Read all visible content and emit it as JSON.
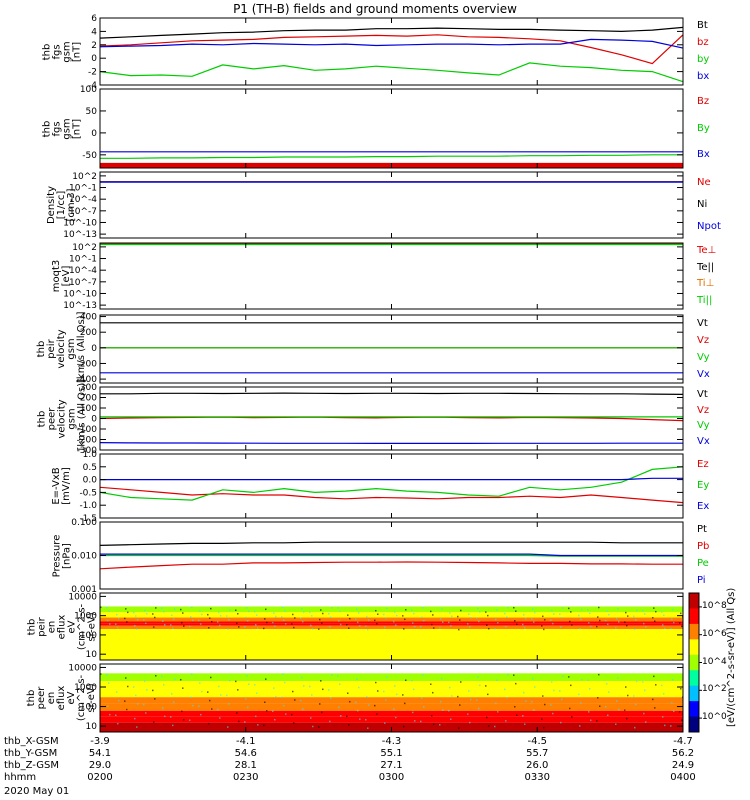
{
  "title": "P1 (TH-B) fields and ground moments overview",
  "chart_data": [
    {
      "type": "line",
      "ylabel": [
        "thb",
        "fgs",
        "gsm",
        "[nT]"
      ],
      "ylim": [
        -4,
        6
      ],
      "yticks": [
        6,
        4,
        2,
        0,
        -2,
        -4
      ],
      "series": [
        {
          "name": "Bt",
          "color": "#000000",
          "values": [
            3.0,
            3.2,
            3.4,
            3.6,
            3.8,
            3.9,
            4.1,
            4.2,
            4.2,
            4.4,
            4.4,
            4.5,
            4.4,
            4.3,
            4.3,
            4.2,
            4.1,
            4.0,
            4.2,
            4.6
          ]
        },
        {
          "name": "bz",
          "color": "#e00000",
          "values": [
            1.8,
            2.0,
            2.3,
            2.6,
            2.7,
            2.8,
            3.1,
            3.2,
            3.3,
            3.4,
            3.3,
            3.5,
            3.2,
            3.1,
            2.9,
            2.6,
            1.6,
            0.5,
            -0.8,
            3.5
          ]
        },
        {
          "name": "by",
          "color": "#00cc00",
          "values": [
            -2.0,
            -2.6,
            -2.5,
            -2.7,
            -1.0,
            -1.6,
            -1.1,
            -1.8,
            -1.6,
            -1.2,
            -1.5,
            -1.8,
            -2.2,
            -2.5,
            -0.7,
            -1.2,
            -1.4,
            -1.8,
            -2.0,
            -3.5
          ]
        },
        {
          "name": "bx",
          "color": "#0000dd",
          "values": [
            1.7,
            1.8,
            1.9,
            2.1,
            2.0,
            2.2,
            2.1,
            2.0,
            2.1,
            1.9,
            2.0,
            2.1,
            2.1,
            2.0,
            2.1,
            2.1,
            2.8,
            2.7,
            2.5,
            1.5
          ]
        }
      ]
    },
    {
      "type": "line",
      "ylabel": [
        "thb",
        "fgs",
        "gsm",
        "[nT]"
      ],
      "ylim": [
        -80,
        100
      ],
      "yticks": [
        100,
        50,
        0,
        -50
      ],
      "series": [
        {
          "name": "Bz",
          "color": "#e00000",
          "values": [
            -74,
            -74,
            -74,
            -74,
            -74,
            -74,
            -74,
            -74,
            -74,
            -74,
            -74,
            -74,
            -74,
            -74,
            -74,
            -74,
            -74,
            -74,
            -74,
            -74
          ]
        },
        {
          "name": "By",
          "color": "#00cc00",
          "values": [
            -58,
            -58,
            -57,
            -57,
            -56,
            -56,
            -55,
            -55,
            -55,
            -54,
            -54,
            -53,
            -53,
            -53,
            -52,
            -52,
            -51,
            -51,
            -50,
            -50
          ]
        },
        {
          "name": "Bx",
          "color": "#0000dd",
          "values": [
            -43,
            -43,
            -43,
            -43,
            -43,
            -43,
            -43,
            -43,
            -43,
            -43,
            -43,
            -43,
            -43,
            -43,
            -43,
            -43,
            -43,
            -43,
            -43,
            -43
          ]
        }
      ]
    },
    {
      "type": "line",
      "ylabel": [
        "Density",
        "[1/cc]",
        "[cm-3]"
      ],
      "yscale": "log",
      "ylim_exp": [
        -14,
        3
      ],
      "ytick_exps": [
        2,
        -1,
        -4,
        -7,
        -10,
        -13
      ],
      "series": [
        {
          "name": "Ne",
          "color": "#e00000",
          "values": [
            3,
            3,
            3,
            3,
            3,
            3,
            3,
            3,
            3,
            3,
            3,
            3,
            3,
            3,
            3,
            3,
            3,
            3,
            3,
            3
          ]
        },
        {
          "name": "Ni",
          "color": "#000000",
          "values": [
            3,
            3,
            3,
            3,
            3,
            3,
            3,
            3,
            3,
            3,
            3,
            3,
            3,
            3,
            3,
            3,
            3,
            3,
            3,
            3
          ]
        },
        {
          "name": "Npot",
          "color": "#0000dd",
          "values": [
            2.5,
            2.5,
            2.5,
            2.5,
            2.5,
            2.5,
            2.5,
            2.5,
            2.5,
            2.5,
            2.5,
            2.5,
            2.5,
            2.5,
            2.5,
            2.5,
            2.5,
            2.5,
            2.5,
            2.5
          ]
        }
      ]
    },
    {
      "type": "line",
      "ylabel": [
        "moqt3",
        "[eV]"
      ],
      "yscale": "log",
      "ylim_exp": [
        -14,
        3
      ],
      "ytick_exps": [
        2,
        -1,
        -4,
        -7,
        -10,
        -13
      ],
      "series": [
        {
          "name": "Te⊥",
          "color": "#e00000",
          "values": [
            700,
            700,
            700,
            700,
            700,
            700,
            700,
            700,
            700,
            700,
            700,
            700,
            700,
            700,
            700,
            700,
            700,
            700,
            700,
            700
          ]
        },
        {
          "name": "Te||",
          "color": "#000000",
          "values": [
            700,
            700,
            700,
            700,
            700,
            700,
            700,
            700,
            700,
            700,
            700,
            700,
            700,
            700,
            700,
            700,
            700,
            700,
            700,
            700
          ]
        },
        {
          "name": "Ti⊥",
          "color": "#e07000",
          "values": [
            500,
            500,
            500,
            500,
            500,
            500,
            500,
            500,
            500,
            500,
            500,
            500,
            500,
            500,
            500,
            500,
            500,
            500,
            500,
            500
          ]
        },
        {
          "name": "Ti||",
          "color": "#00cc00",
          "values": [
            400,
            400,
            400,
            400,
            400,
            400,
            400,
            400,
            400,
            400,
            400,
            400,
            400,
            400,
            400,
            400,
            400,
            400,
            400,
            400
          ]
        }
      ]
    },
    {
      "type": "line",
      "ylabel": [
        "thb",
        "peir",
        "velocity",
        "gsm",
        "[km/s (All Qs)]"
      ],
      "ylim": [
        -450,
        420
      ],
      "yticks": [
        400,
        200,
        0,
        -200,
        -400
      ],
      "series": [
        {
          "name": "Vt",
          "color": "#000000",
          "values": [
            320,
            320,
            320,
            320,
            320,
            320,
            320,
            320,
            320,
            320,
            320,
            320,
            320,
            320,
            320,
            320,
            320,
            320,
            320,
            320
          ]
        },
        {
          "name": "Vz",
          "color": "#e00000",
          "values": [
            0,
            0,
            0,
            0,
            0,
            0,
            0,
            0,
            0,
            0,
            0,
            0,
            0,
            0,
            0,
            0,
            0,
            0,
            0,
            0
          ]
        },
        {
          "name": "Vy",
          "color": "#00cc00",
          "values": [
            0,
            0,
            0,
            0,
            0,
            0,
            0,
            0,
            0,
            0,
            0,
            0,
            0,
            0,
            0,
            0,
            0,
            0,
            0,
            0
          ]
        },
        {
          "name": "Vx",
          "color": "#0000dd",
          "values": [
            -320,
            -320,
            -320,
            -320,
            -320,
            -320,
            -320,
            -320,
            -320,
            -320,
            -320,
            -320,
            -320,
            -320,
            -320,
            -320,
            -320,
            -320,
            -320,
            -320
          ]
        }
      ]
    },
    {
      "type": "line",
      "ylabel": [
        "thb",
        "peer",
        "velocity",
        "gsm",
        "[km/s (All Qs)]"
      ],
      "ylim": [
        -300,
        300
      ],
      "yticks": [
        300,
        200,
        100,
        0,
        -100,
        -200,
        -300
      ],
      "series": [
        {
          "name": "Vt",
          "color": "#000000",
          "values": [
            235,
            235,
            240,
            240,
            238,
            240,
            242,
            240,
            238,
            240,
            240,
            238,
            240,
            240,
            238,
            236,
            235,
            235,
            232,
            230
          ]
        },
        {
          "name": "Vz",
          "color": "#e00000",
          "values": [
            0,
            5,
            8,
            10,
            12,
            8,
            10,
            12,
            8,
            6,
            10,
            12,
            8,
            6,
            10,
            8,
            5,
            0,
            -10,
            -20
          ]
        },
        {
          "name": "Vy",
          "color": "#00cc00",
          "values": [
            15,
            15,
            15,
            15,
            15,
            15,
            15,
            15,
            15,
            15,
            15,
            15,
            15,
            15,
            15,
            15,
            15,
            15,
            15,
            15
          ]
        },
        {
          "name": "Vx",
          "color": "#0000dd",
          "values": [
            -230,
            -232,
            -233,
            -233,
            -234,
            -235,
            -236,
            -236,
            -236,
            -237,
            -237,
            -237,
            -237,
            -236,
            -236,
            -236,
            -236,
            -235,
            -235,
            -235
          ]
        }
      ]
    },
    {
      "type": "line",
      "ylabel": [
        "E=-VxB",
        "[mV/m]"
      ],
      "ylim": [
        -1.5,
        1.0
      ],
      "yticks": [
        1.0,
        0.5,
        0.0,
        -0.5,
        -1.0,
        -1.5
      ],
      "series": [
        {
          "name": "Ez",
          "color": "#e00000",
          "values": [
            -0.3,
            -0.4,
            -0.5,
            -0.6,
            -0.55,
            -0.6,
            -0.6,
            -0.7,
            -0.75,
            -0.7,
            -0.72,
            -0.75,
            -0.7,
            -0.7,
            -0.65,
            -0.7,
            -0.6,
            -0.7,
            -0.8,
            -0.9
          ]
        },
        {
          "name": "Ey",
          "color": "#00cc00",
          "values": [
            -0.5,
            -0.7,
            -0.75,
            -0.8,
            -0.4,
            -0.5,
            -0.35,
            -0.5,
            -0.45,
            -0.35,
            -0.45,
            -0.5,
            -0.6,
            -0.65,
            -0.3,
            -0.4,
            -0.3,
            -0.1,
            0.4,
            0.5
          ]
        },
        {
          "name": "Ex",
          "color": "#0000dd",
          "values": [
            0.0,
            0.0,
            0.0,
            0.0,
            0.0,
            0.0,
            0.0,
            0.0,
            0.0,
            0.0,
            0.0,
            0.0,
            0.0,
            0.0,
            0.0,
            0.0,
            0.0,
            0.0,
            0.05,
            0.05
          ]
        }
      ]
    },
    {
      "type": "line",
      "ylabel": [
        "Pressure",
        "[nPa]"
      ],
      "yscale": "log",
      "ylim": [
        0.001,
        0.1
      ],
      "yticks": [
        0.1,
        0.01,
        0.001
      ],
      "ytick_labels": [
        "0.100",
        "0.010",
        "0.001"
      ],
      "series": [
        {
          "name": "Pt",
          "color": "#000000",
          "values": [
            0.02,
            0.021,
            0.022,
            0.023,
            0.023,
            0.024,
            0.024,
            0.025,
            0.025,
            0.025,
            0.025,
            0.025,
            0.025,
            0.025,
            0.025,
            0.025,
            0.025,
            0.024,
            0.024,
            0.024
          ]
        },
        {
          "name": "Pb",
          "color": "#e00000",
          "values": [
            0.004,
            0.0045,
            0.005,
            0.0055,
            0.0055,
            0.006,
            0.006,
            0.0062,
            0.0063,
            0.0063,
            0.0064,
            0.0063,
            0.0062,
            0.006,
            0.0058,
            0.0058,
            0.0056,
            0.0056,
            0.0055,
            0.0055
          ]
        },
        {
          "name": "Pe",
          "color": "#00cc00",
          "values": [
            0.01,
            0.01,
            0.01,
            0.01,
            0.01,
            0.01,
            0.01,
            0.01,
            0.01,
            0.01,
            0.01,
            0.01,
            0.01,
            0.01,
            0.01,
            0.0095,
            0.0095,
            0.0095,
            0.0095,
            0.0095
          ]
        },
        {
          "name": "Pi",
          "color": "#0000dd",
          "values": [
            0.011,
            0.011,
            0.011,
            0.011,
            0.011,
            0.011,
            0.011,
            0.011,
            0.011,
            0.011,
            0.011,
            0.011,
            0.011,
            0.011,
            0.011,
            0.01,
            0.01,
            0.01,
            0.01,
            0.01
          ]
        }
      ]
    },
    {
      "type": "heatmap",
      "ylabel": [
        "thb",
        "peir",
        "en",
        "eflux",
        "eV",
        "(cm^2-s-",
        "sr-eV)"
      ],
      "yscale": "log",
      "ylim": [
        5,
        15000
      ],
      "yticks": [
        10000,
        1000,
        100,
        10
      ],
      "band_energies": [
        3000,
        1500,
        800,
        500,
        400,
        300,
        200
      ],
      "band_levels": [
        4.2,
        4.8,
        5.8,
        6.6,
        7.0,
        6.0,
        4.5
      ]
    },
    {
      "type": "heatmap",
      "ylabel": [
        "thb",
        "peer",
        "en",
        "eflux",
        "eV",
        "(cm^2-s-",
        "sr-eV)"
      ],
      "yscale": "log",
      "ylim": [
        5,
        15000
      ],
      "yticks": [
        10000,
        1000,
        100,
        10
      ],
      "band_energies": [
        5000,
        2000,
        800,
        300,
        150,
        60,
        30,
        15,
        8
      ],
      "band_levels": [
        4.2,
        4.6,
        5.2,
        5.8,
        6.4,
        6.9,
        7.4,
        7.8,
        8.0
      ]
    }
  ],
  "colorbar": {
    "title": "[eV/(cm^2-s-sr-eV)] (All Qs)",
    "tick_exps": [
      8,
      6,
      4,
      2,
      0
    ],
    "colors": [
      "#00007f",
      "#0000ff",
      "#00c0ff",
      "#00ffa0",
      "#a0ff00",
      "#ffff00",
      "#ff8000",
      "#ff0000",
      "#c00000"
    ]
  },
  "xaxis": {
    "tick_count": 5,
    "rows": [
      {
        "label": "thb_X-GSM",
        "values": [
          "-3.9",
          "-4.1",
          "-4.3",
          "-4.5",
          "-4.7"
        ]
      },
      {
        "label": "thb_Y-GSM",
        "values": [
          "54.1",
          "54.6",
          "55.1",
          "55.7",
          "56.2"
        ]
      },
      {
        "label": "thb_Z-GSM",
        "values": [
          "29.0",
          "28.1",
          "27.1",
          "26.0",
          "24.9"
        ]
      },
      {
        "label": "hhmm",
        "values": [
          "0200",
          "0230",
          "0300",
          "0330",
          "0400"
        ]
      }
    ],
    "date": "2020 May 01"
  }
}
